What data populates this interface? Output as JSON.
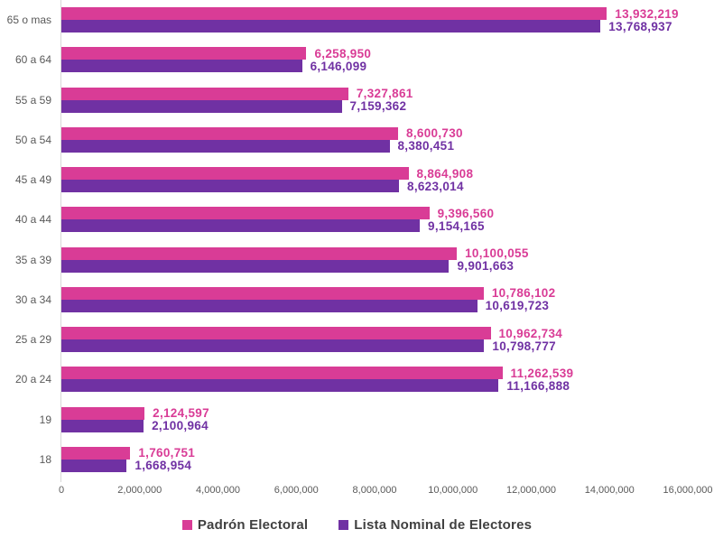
{
  "chart_data": {
    "type": "bar",
    "orientation": "horizontal",
    "title": "",
    "xlabel": "",
    "ylabel": "",
    "categories": [
      "65 o mas",
      "60 a 64",
      "55 a 59",
      "50 a 54",
      "45 a 49",
      "40 a 44",
      "35 a 39",
      "30 a 34",
      "25 a 29",
      "20 a 24",
      "19",
      "18"
    ],
    "series": [
      {
        "name": "Padrón Electoral",
        "color": "#d93c96",
        "values": [
          13932219,
          6258950,
          7327861,
          8600730,
          8864908,
          9396560,
          10100055,
          10786102,
          10962734,
          11262539,
          2124597,
          1760751
        ],
        "labels": [
          "13,932,219",
          "6,258,950",
          "7,327,861",
          "8,600,730",
          "8,864,908",
          "9,396,560",
          "10,100,055",
          "10,786,102",
          "10,962,734",
          "11,262,539",
          "2,124,597",
          "1,760,751"
        ]
      },
      {
        "name": "Lista Nominal de Electores",
        "color": "#7031a3",
        "values": [
          13768937,
          6146099,
          7159362,
          8380451,
          8623014,
          9154165,
          9901663,
          10619723,
          10798777,
          11166888,
          2100964,
          1668954
        ],
        "labels": [
          "13,768,937",
          "6,146,099",
          "7,159,362",
          "8,380,451",
          "8,623,014",
          "9,154,165",
          "9,901,663",
          "10,619,723",
          "10,798,777",
          "11,166,888",
          "2,100,964",
          "1,668,954"
        ]
      }
    ],
    "xlim": [
      0,
      16000000
    ],
    "x_ticks": [
      "0",
      "2,000,000",
      "4,000,000",
      "6,000,000",
      "8,000,000",
      "10,000,000",
      "12,000,000",
      "14,000,000",
      "16,000,000"
    ],
    "data_labels": true,
    "grid": false,
    "legend_position": "bottom"
  },
  "styles": {
    "axis_text_color": "#595959",
    "legend_text_color": "#404040",
    "axis_line_color": "#d9d9d9",
    "background": "#ffffff"
  }
}
